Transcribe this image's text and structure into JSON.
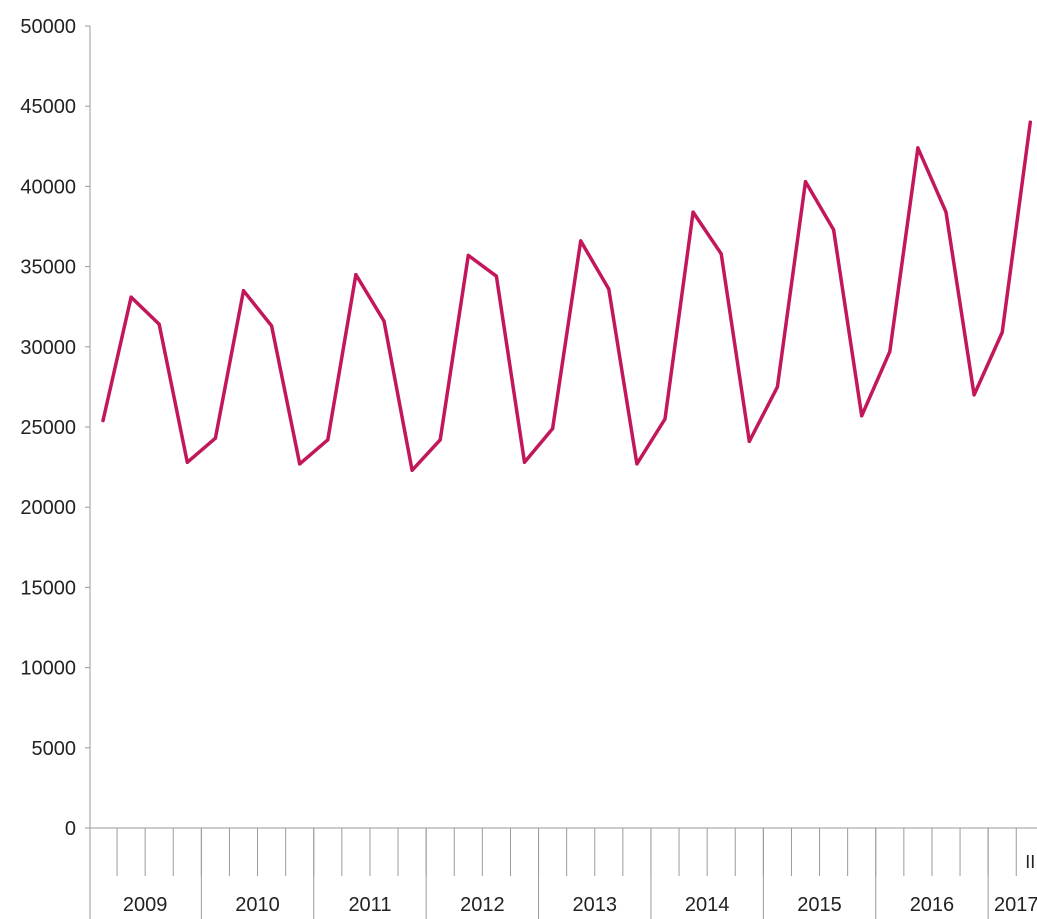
{
  "chart_data": {
    "type": "line",
    "title": "",
    "xlabel": "",
    "ylabel": "",
    "ylim": [
      0,
      50000
    ],
    "y_ticks": [
      0,
      5000,
      10000,
      15000,
      20000,
      25000,
      30000,
      35000,
      40000,
      45000,
      50000
    ],
    "grid": false,
    "legend": "none",
    "color": "#c2185b",
    "year_groups": [
      {
        "label": "2009",
        "quarters": 4
      },
      {
        "label": "2010",
        "quarters": 4
      },
      {
        "label": "2011",
        "quarters": 4
      },
      {
        "label": "2012",
        "quarters": 4
      },
      {
        "label": "2013",
        "quarters": 4
      },
      {
        "label": "2014",
        "quarters": 4
      },
      {
        "label": "2015",
        "quarters": 4
      },
      {
        "label": "2016",
        "quarters": 4
      },
      {
        "label": "2017",
        "quarters": 2
      }
    ],
    "quarter_labels": [
      "",
      "",
      "",
      "",
      "",
      "",
      "",
      "",
      "",
      "",
      "",
      "",
      "",
      "",
      "",
      "",
      "",
      "",
      "",
      "",
      "",
      "",
      "",
      "",
      "",
      "",
      "",
      "",
      "",
      "",
      "",
      "",
      "",
      "II"
    ],
    "series": [
      {
        "values": [
          25400,
          33100,
          31400,
          22800,
          24300,
          33500,
          31300,
          22700,
          24200,
          34500,
          31600,
          22300,
          24200,
          35700,
          34400,
          22800,
          24900,
          36600,
          33600,
          22700,
          25500,
          38400,
          35800,
          24100,
          27500,
          40300,
          37300,
          25700,
          29700,
          42400,
          38400,
          27000,
          30900,
          44000
        ]
      }
    ]
  }
}
